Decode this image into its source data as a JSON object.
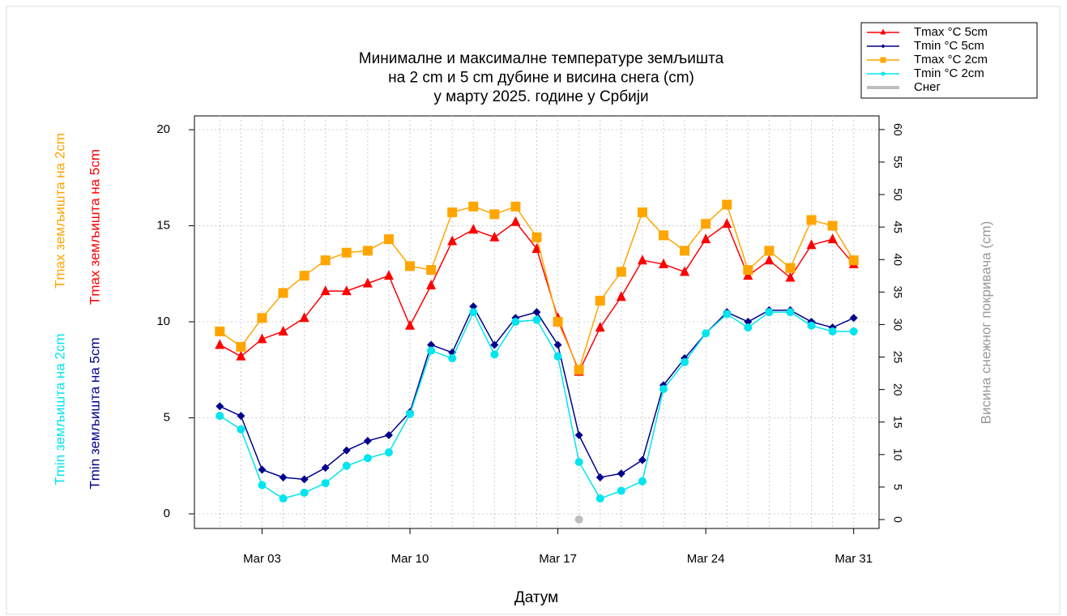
{
  "chart_data": {
    "type": "line",
    "title": [
      "Минималне и максималне температуре земљишта",
      "на 2 cm и 5 cm дубине и висина снега (cm)",
      "у марту 2025. године у Србији"
    ],
    "x_label": "Датум",
    "y_labels": [
      {
        "text": "Tmax земљишта на 2cm",
        "color": "#ffa500"
      },
      {
        "text": "Tmax земљишта на 5cm",
        "color": "#ff0000"
      },
      {
        "text": "Tmin земљишта на 2cm",
        "color": "#00e5ee"
      },
      {
        "text": "Tmin земљишта на 5cm",
        "color": "#00008b"
      }
    ],
    "y2_label": "Висина снежног покривача (cm)",
    "x": [
      1,
      2,
      3,
      4,
      5,
      6,
      7,
      8,
      9,
      10,
      11,
      12,
      13,
      14,
      15,
      16,
      17,
      18,
      19,
      20,
      21,
      22,
      23,
      24,
      25,
      26,
      27,
      28,
      29,
      30,
      31
    ],
    "xlim": [
      -0.2,
      32.2
    ],
    "xticks": [
      {
        "value": 3,
        "label": "Mar 03"
      },
      {
        "value": 10,
        "label": "Mar 10"
      },
      {
        "value": 17,
        "label": "Mar 17"
      },
      {
        "value": 24,
        "label": "Mar 24"
      },
      {
        "value": 31,
        "label": "Mar 31"
      }
    ],
    "ylim": [
      -0.76,
      20.72
    ],
    "yticks": [
      0,
      5,
      10,
      15,
      20
    ],
    "y2lim": [
      -1.37,
      62.1
    ],
    "y2ticks": [
      0,
      5,
      10,
      15,
      20,
      25,
      30,
      35,
      40,
      45,
      50,
      55,
      60
    ],
    "grid": true,
    "legend": "top-right",
    "series": [
      {
        "name": "Tmax °C 5cm",
        "color": "#ff0000",
        "marker": "triangle",
        "values": [
          8.8,
          8.2,
          9.1,
          9.5,
          10.2,
          11.6,
          11.6,
          12.0,
          12.4,
          9.8,
          11.9,
          14.2,
          14.8,
          14.4,
          15.2,
          13.8,
          10.2,
          7.4,
          9.7,
          11.3,
          13.2,
          13.0,
          12.6,
          14.3,
          15.1,
          12.4,
          13.2,
          12.3,
          14.0,
          14.3,
          13.0
        ]
      },
      {
        "name": "Tmin °C 5cm",
        "color": "#00008b",
        "marker": "diamond",
        "values": [
          5.6,
          5.1,
          2.3,
          1.9,
          1.8,
          2.4,
          3.3,
          3.8,
          4.1,
          5.3,
          8.8,
          8.4,
          10.8,
          8.8,
          10.2,
          10.5,
          8.8,
          4.1,
          1.9,
          2.1,
          2.8,
          6.7,
          8.1,
          9.4,
          10.5,
          10.0,
          10.6,
          10.6,
          10.0,
          9.7,
          10.2
        ]
      },
      {
        "name": "Tmax °C 2cm",
        "color": "#ffa500",
        "marker": "square",
        "values": [
          9.5,
          8.7,
          10.2,
          11.5,
          12.4,
          13.2,
          13.6,
          13.7,
          14.3,
          12.9,
          12.7,
          15.7,
          16.0,
          15.6,
          16.0,
          14.4,
          10.0,
          7.5,
          11.1,
          12.6,
          15.7,
          14.5,
          13.7,
          15.1,
          16.1,
          12.7,
          13.7,
          12.8,
          15.3,
          15.0,
          13.2
        ]
      },
      {
        "name": "Tmin °C 2cm",
        "color": "#00e5ee",
        "marker": "circle",
        "values": [
          5.1,
          4.4,
          1.5,
          0.8,
          1.1,
          1.6,
          2.5,
          2.9,
          3.2,
          5.2,
          8.5,
          8.1,
          10.5,
          8.3,
          10.0,
          10.1,
          8.2,
          2.7,
          0.8,
          1.2,
          1.7,
          6.5,
          7.9,
          9.4,
          10.4,
          9.7,
          10.5,
          10.5,
          9.8,
          9.5,
          9.5
        ]
      },
      {
        "name": "Снег",
        "color": "#bebebe",
        "marker": "circle",
        "axis": "y2",
        "values": [
          null,
          null,
          null,
          null,
          null,
          null,
          null,
          null,
          null,
          null,
          null,
          null,
          null,
          null,
          null,
          null,
          null,
          0,
          null,
          null,
          null,
          null,
          null,
          null,
          null,
          null,
          null,
          null,
          null,
          null,
          null
        ]
      }
    ]
  }
}
